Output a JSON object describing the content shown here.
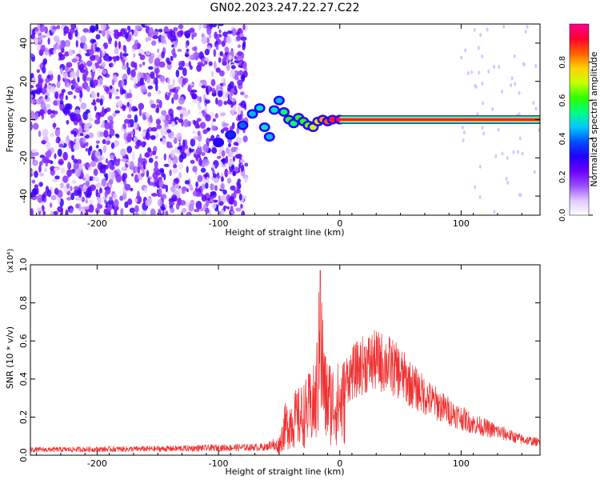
{
  "title": "GN02.2023.247.22.27.C22",
  "chart_data": [
    {
      "type": "heatmap",
      "xlabel": "Height of straight line (km)",
      "ylabel": "Frequency (Hz)",
      "xlim": [
        -255,
        165
      ],
      "ylim": [
        -50,
        50
      ],
      "xticks": [
        -200,
        -100,
        0,
        100
      ],
      "yticks": [
        -40,
        -20,
        0,
        20,
        40
      ],
      "grid": false,
      "colorbar": {
        "label": "Normalized spectral amplitude",
        "range": [
          0,
          1
        ],
        "ticks": [
          0.0,
          0.2,
          0.4,
          0.6,
          0.8
        ],
        "colormap": [
          "#ffffff",
          "#e0c8ff",
          "#9a4dff",
          "#6a00ff",
          "#2000ff",
          "#0050ff",
          "#00c8ff",
          "#00ff80",
          "#30ff00",
          "#c8ff00",
          "#ffd000",
          "#ff6000",
          "#ff0030",
          "#ff0090"
        ]
      },
      "noise_region": {
        "x": [
          -255,
          -77
        ],
        "y": [
          -50,
          50
        ],
        "amplitude": [
          0.05,
          0.3
        ]
      },
      "signal_track": [
        {
          "x": -100,
          "y": -12,
          "amp": 0.3
        },
        {
          "x": -90,
          "y": -8,
          "amp": 0.35
        },
        {
          "x": -80,
          "y": -3,
          "amp": 0.4
        },
        {
          "x": -72,
          "y": 3,
          "amp": 0.45
        },
        {
          "x": -66,
          "y": 6,
          "amp": 0.5
        },
        {
          "x": -62,
          "y": -4,
          "amp": 0.5
        },
        {
          "x": -58,
          "y": -9,
          "amp": 0.45
        },
        {
          "x": -54,
          "y": 5,
          "amp": 0.5
        },
        {
          "x": -50,
          "y": 10,
          "amp": 0.45
        },
        {
          "x": -46,
          "y": 4,
          "amp": 0.55
        },
        {
          "x": -42,
          "y": 0,
          "amp": 0.6
        },
        {
          "x": -38,
          "y": -2,
          "amp": 0.55
        },
        {
          "x": -34,
          "y": 1,
          "amp": 0.6
        },
        {
          "x": -30,
          "y": -1,
          "amp": 0.6
        },
        {
          "x": -26,
          "y": -3,
          "amp": 0.65
        },
        {
          "x": -22,
          "y": -4,
          "amp": 0.7
        },
        {
          "x": -18,
          "y": -1,
          "amp": 0.75
        },
        {
          "x": -14,
          "y": 0,
          "amp": 0.8
        },
        {
          "x": -10,
          "y": -1,
          "amp": 0.85
        },
        {
          "x": -6,
          "y": 0,
          "amp": 0.9
        },
        {
          "x": 0,
          "y": 0,
          "amp": 0.95
        }
      ],
      "carrier_line": {
        "x": [
          0,
          165
        ],
        "y": 0,
        "amp": 0.95
      }
    },
    {
      "type": "line",
      "xlabel": "Height of straight line (km)",
      "ylabel": "SNR (10 * v/v)",
      "y_multiplier": "(x10⁴)",
      "xlim": [
        -255,
        165
      ],
      "ylim": [
        0,
        1.0
      ],
      "xticks": [
        -200,
        -100,
        0,
        100
      ],
      "yticks": [
        0.0,
        0.2,
        0.4,
        0.6,
        0.8,
        1.0
      ],
      "grid": false,
      "line_color": "#f03030",
      "series_envelope": [
        {
          "x": -255,
          "y": 0.03
        },
        {
          "x": -150,
          "y": 0.035
        },
        {
          "x": -60,
          "y": 0.045
        },
        {
          "x": -50,
          "y": 0.09
        },
        {
          "x": -45,
          "y": 0.25
        },
        {
          "x": -40,
          "y": 0.3
        },
        {
          "x": -35,
          "y": 0.32
        },
        {
          "x": -30,
          "y": 0.35
        },
        {
          "x": -25,
          "y": 0.4
        },
        {
          "x": -20,
          "y": 0.45
        },
        {
          "x": -16,
          "y": 0.95
        },
        {
          "x": -12,
          "y": 0.5
        },
        {
          "x": -5,
          "y": 0.45
        },
        {
          "x": 0,
          "y": 0.45
        },
        {
          "x": 10,
          "y": 0.52
        },
        {
          "x": 20,
          "y": 0.58
        },
        {
          "x": 30,
          "y": 0.6
        },
        {
          "x": 40,
          "y": 0.58
        },
        {
          "x": 50,
          "y": 0.52
        },
        {
          "x": 60,
          "y": 0.44
        },
        {
          "x": 75,
          "y": 0.35
        },
        {
          "x": 90,
          "y": 0.28
        },
        {
          "x": 110,
          "y": 0.2
        },
        {
          "x": 130,
          "y": 0.15
        },
        {
          "x": 150,
          "y": 0.1
        },
        {
          "x": 165,
          "y": 0.08
        }
      ]
    }
  ]
}
